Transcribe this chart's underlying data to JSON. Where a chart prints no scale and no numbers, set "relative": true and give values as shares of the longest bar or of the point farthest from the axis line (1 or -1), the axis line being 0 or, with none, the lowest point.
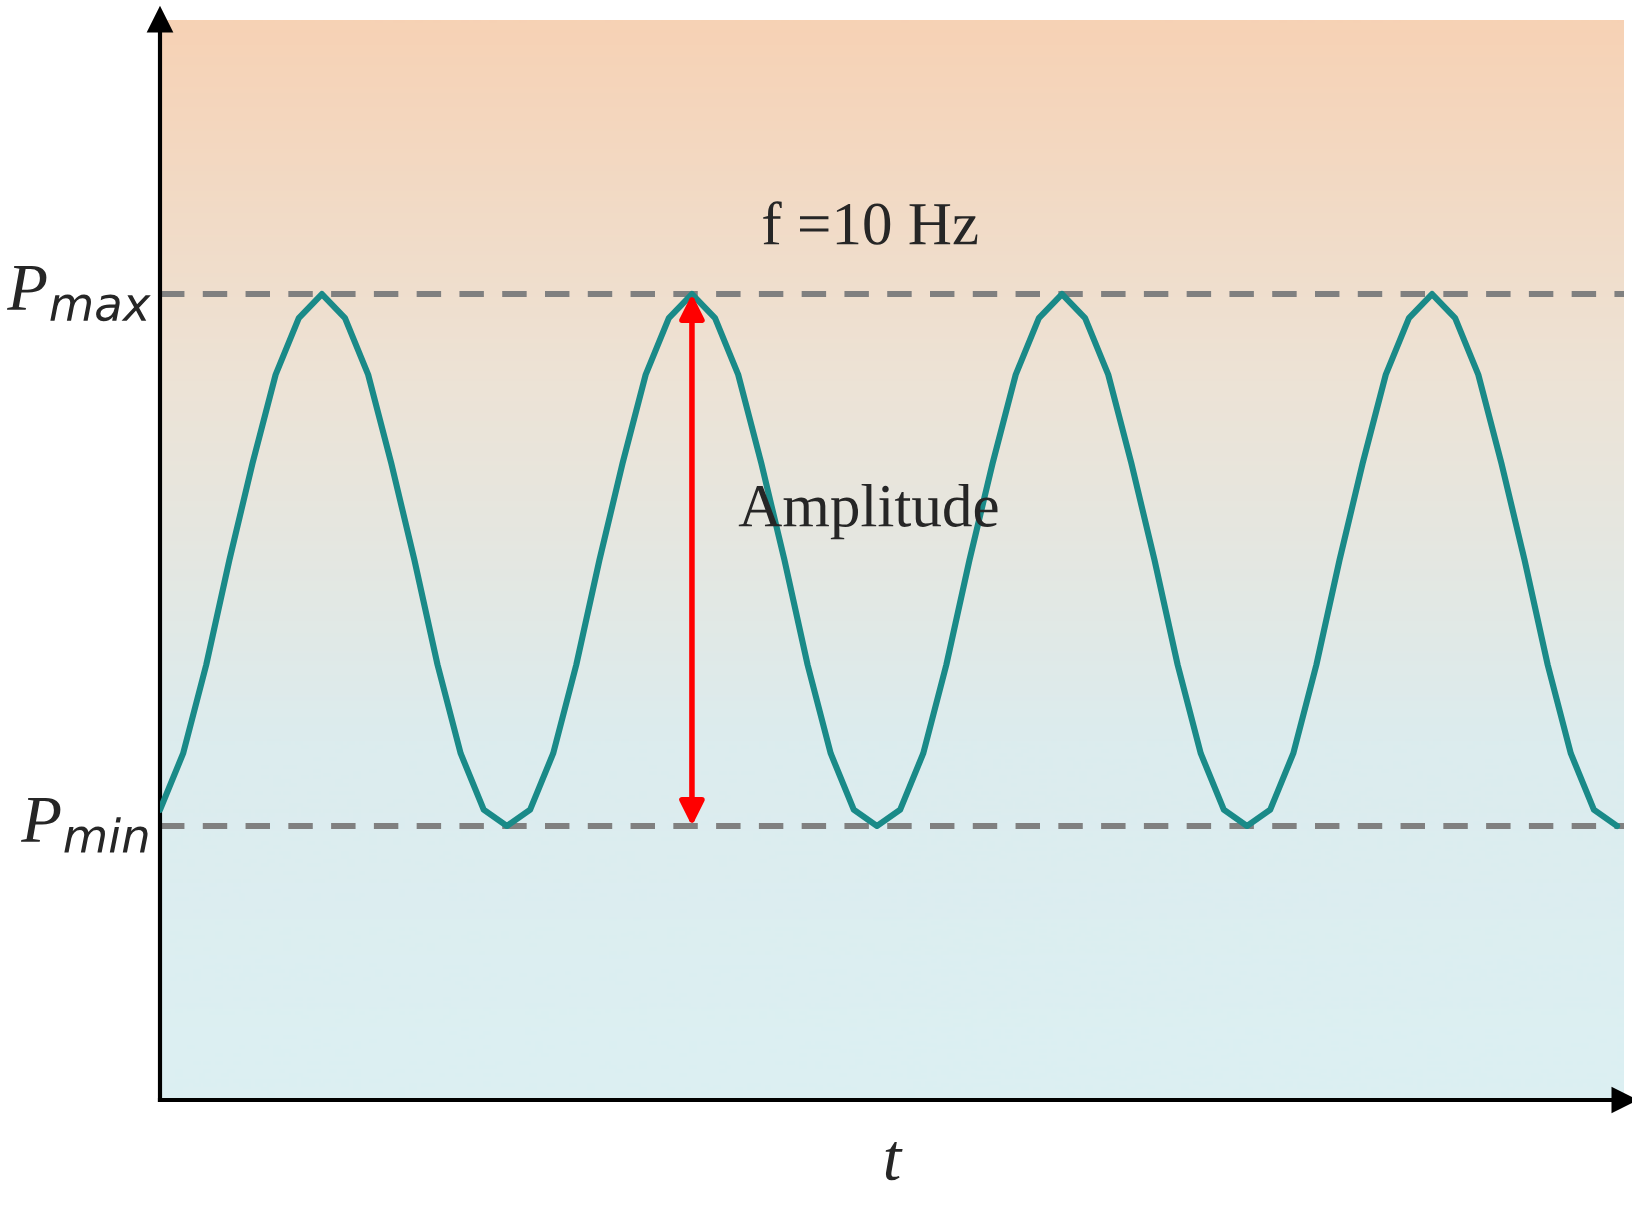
{
  "chart_data": {
    "type": "line",
    "relative": true,
    "xlabel": "t",
    "categories": [
      null,
      null,
      null,
      null,
      null,
      null,
      null,
      null,
      null,
      null,
      null,
      null,
      null,
      null,
      null,
      null,
      null,
      null,
      null,
      null,
      null,
      null,
      null,
      null,
      null,
      null,
      null,
      null,
      null,
      null,
      null,
      null,
      null,
      null,
      null,
      null,
      null,
      null,
      null,
      null,
      null,
      null,
      null,
      null,
      null,
      null,
      null,
      null,
      null,
      null,
      null,
      null,
      null,
      null,
      null,
      null,
      null,
      null,
      null,
      null,
      null,
      null,
      null,
      null
    ],
    "series": [
      {
        "color": "#1a8a88",
        "values": [
          0.36,
          0.43,
          0.54,
          0.67,
          0.79,
          0.9,
          0.97,
          1.0,
          0.97,
          0.9,
          0.79,
          0.67,
          0.54,
          0.43,
          0.36,
          0.34,
          0.36,
          0.43,
          0.54,
          0.67,
          0.79,
          0.9,
          0.97,
          1.0,
          0.97,
          0.9,
          0.79,
          0.67,
          0.54,
          0.43,
          0.36,
          0.34,
          0.36,
          0.43,
          0.54,
          0.67,
          0.79,
          0.9,
          0.97,
          1.0,
          0.97,
          0.9,
          0.79,
          0.67,
          0.54,
          0.43,
          0.36,
          0.34,
          0.36,
          0.43,
          0.54,
          0.67,
          0.79,
          0.9,
          0.97,
          1.0,
          0.97,
          0.9,
          0.79,
          0.67,
          0.54,
          0.43,
          0.36,
          0.34
        ]
      }
    ],
    "ref_lines": [
      {
        "axis": "y",
        "value": 1.0,
        "label": "P$_{max}$",
        "color": "#808080",
        "line_style": "dashed"
      },
      {
        "axis": "y",
        "value": 0.34,
        "label": "P$_{min}$",
        "color": "#808080",
        "line_style": "dashed"
      }
    ],
    "annotations": [
      "f =10 Hz",
      "Amplitude"
    ],
    "marker": "none",
    "line_style": "solid"
  }
}
